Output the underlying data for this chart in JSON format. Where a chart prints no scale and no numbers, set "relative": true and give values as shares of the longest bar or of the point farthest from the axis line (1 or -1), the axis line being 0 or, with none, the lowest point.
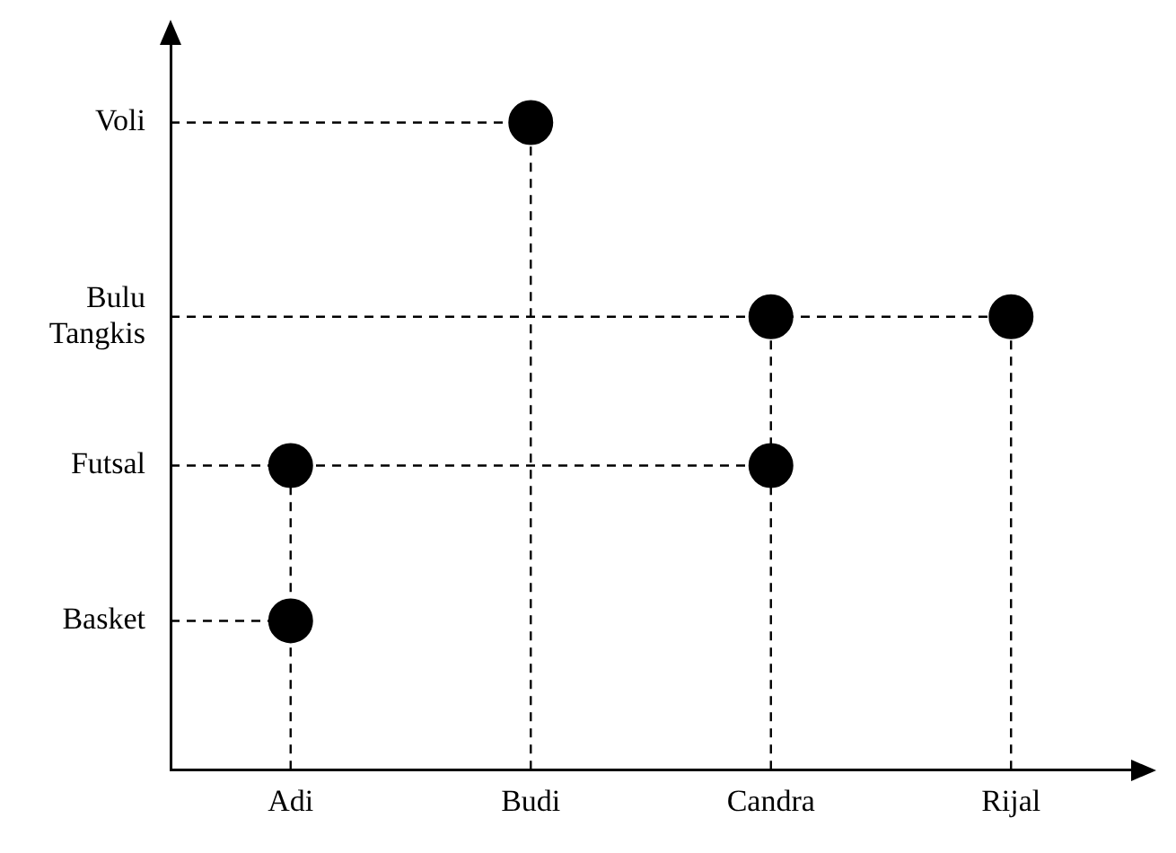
{
  "chart_data": {
    "type": "scatter",
    "categories": [
      "Adi",
      "Budi",
      "Candra",
      "Rijal"
    ],
    "relative": true,
    "series": [
      {
        "color": "#000000",
        "x": [
          "Adi",
          "Adi",
          "Budi",
          "Candra",
          "Candra",
          "Rijal"
        ],
        "values": [
          0.23,
          0.47,
          1,
          0.47,
          0.7,
          0.7
        ]
      }
    ],
    "ref_lines": [
      {
        "axis": "y",
        "value": 0.23,
        "label": "Basket",
        "line_style": "dashed",
        "color": "#000000"
      },
      {
        "axis": "y",
        "value": 0.47,
        "label": "Futsal",
        "line_style": "dashed",
        "color": "#000000"
      },
      {
        "axis": "y",
        "value": 0.7,
        "label": "Bulu Tangkis",
        "line_style": "dashed",
        "color": "#000000"
      },
      {
        "axis": "y",
        "value": 1,
        "label": "Voli",
        "line_style": "dashed",
        "color": "#000000"
      }
    ],
    "grid": "x",
    "legend": false,
    "marker": "circle",
    "line_style": "dashed"
  }
}
